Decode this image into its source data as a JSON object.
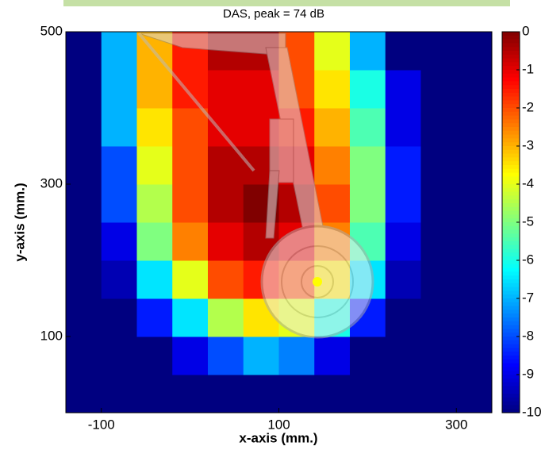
{
  "chart_data": {
    "type": "heatmap",
    "title": "DAS, peak = 74 dB",
    "xlabel": "x-axis (mm.)",
    "ylabel": "y-axis (mm.)",
    "x": [
      -120,
      -80,
      -40,
      0,
      40,
      80,
      120,
      160,
      200,
      240,
      280,
      320
    ],
    "y": [
      25,
      75,
      125,
      175,
      225,
      275,
      325,
      375,
      425,
      475
    ],
    "z": [
      [
        -10,
        -10,
        -10,
        -10,
        -10,
        -10,
        -10,
        -10,
        -10,
        -10,
        -10,
        -10
      ],
      [
        -10,
        -10,
        -10,
        -9,
        -8,
        -7,
        -7.5,
        -9,
        -10,
        -10,
        -10,
        -10
      ],
      [
        -10,
        -10,
        -8.5,
        -6.5,
        -4.5,
        -3.5,
        -4,
        -6,
        -8.5,
        -10,
        -10,
        -10
      ],
      [
        -10,
        -9.5,
        -6.5,
        -4,
        -2,
        -1.5,
        -2,
        -3.5,
        -6.5,
        -9.5,
        -10,
        -10
      ],
      [
        -10,
        -9,
        -5,
        -2.5,
        -1,
        -0.5,
        -1,
        -2.5,
        -5.5,
        -9,
        -10,
        -10
      ],
      [
        -10,
        -8,
        -4.5,
        -2,
        -0.5,
        0,
        -0.5,
        -2,
        -5,
        -8.5,
        -10,
        -10
      ],
      [
        -10,
        -8,
        -4,
        -2,
        -0.5,
        -0.5,
        -1,
        -2.5,
        -5,
        -8.5,
        -10,
        -10
      ],
      [
        -10,
        -7,
        -3.5,
        -2,
        -1,
        -1,
        -1.5,
        -3,
        -5.5,
        -9,
        -10,
        -10
      ],
      [
        -10,
        -7,
        -3,
        -1.5,
        -1,
        -1,
        -2,
        -3.5,
        -6,
        -9,
        -10,
        -10
      ],
      [
        -10,
        -7,
        -3,
        -1.5,
        -0.5,
        -0.5,
        -2,
        -4,
        -7,
        -10,
        -10,
        -10
      ]
    ],
    "xlim": [
      -140,
      340
    ],
    "ylim": [
      0,
      500
    ],
    "xticks": [
      -100,
      100,
      300
    ],
    "yticks": [
      100,
      300,
      500
    ],
    "colormap": "jet",
    "clim": [
      -10,
      0
    ],
    "colorbar_ticks": [
      0,
      -1,
      -2,
      -3,
      -4,
      -5,
      -6,
      -7,
      -8,
      -9,
      -10
    ]
  }
}
